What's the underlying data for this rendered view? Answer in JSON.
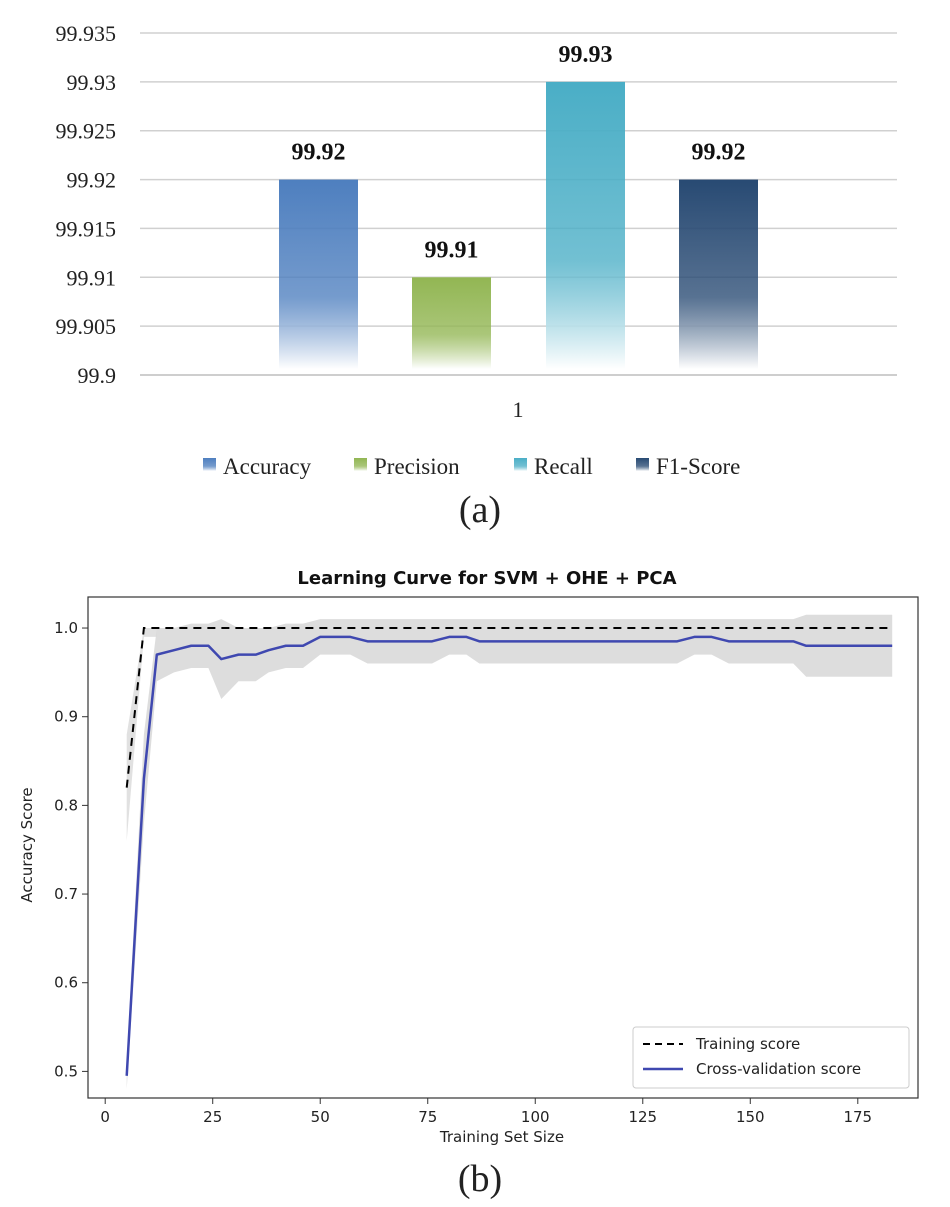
{
  "chart_data": [
    {
      "type": "bar",
      "panel_label": "(a)",
      "title": "",
      "xlabel": "",
      "ylabel": "",
      "categories": [
        "1"
      ],
      "series": [
        {
          "name": "Accuracy",
          "values": [
            99.92
          ],
          "label": "99.92",
          "color_top": "#4e7fbf",
          "color_bottom": "#ffffff"
        },
        {
          "name": "Precision",
          "values": [
            99.91
          ],
          "label": "99.91",
          "color_top": "#92b653",
          "color_bottom": "#ffffff"
        },
        {
          "name": "Recall",
          "values": [
            99.93
          ],
          "label": "99.93",
          "color_top": "#4aaec6",
          "color_bottom": "#ffffff"
        },
        {
          "name": "F1-Score",
          "values": [
            99.92
          ],
          "label": "99.92",
          "color_top": "#284a73",
          "color_bottom": "#ffffff"
        }
      ],
      "ylim": [
        99.9,
        99.935
      ],
      "yticks": [
        "99.935",
        "99.93",
        "99.925",
        "99.92",
        "99.915",
        "99.91",
        "99.905",
        "99.9"
      ],
      "grid": true,
      "legend_position": "bottom"
    },
    {
      "type": "line",
      "panel_label": "(b)",
      "title": "Learning Curve for  SVM + OHE + PCA",
      "xlabel": "Training Set Size",
      "ylabel": "Accuracy Score",
      "xlim": [
        -4,
        189
      ],
      "ylim": [
        0.47,
        1.035
      ],
      "xticks": [
        0,
        25,
        50,
        75,
        100,
        125,
        150,
        175
      ],
      "yticks": [
        0.5,
        0.6,
        0.7,
        0.8,
        0.9,
        1.0
      ],
      "ytick_labels": [
        "0.5",
        "0.6",
        "0.7",
        "0.8",
        "0.9",
        "1.0"
      ],
      "grid": false,
      "legend_position": "bottom-right",
      "x": [
        5,
        9,
        12,
        16,
        20,
        24,
        27,
        31,
        35,
        38,
        42,
        46,
        50,
        54,
        57,
        61,
        65,
        69,
        72,
        76,
        80,
        84,
        87,
        91,
        95,
        99,
        103,
        107,
        110,
        114,
        118,
        122,
        126,
        129,
        133,
        137,
        141,
        145,
        148,
        152,
        156,
        160,
        163,
        167,
        171,
        175,
        183
      ],
      "series": [
        {
          "name": "Training score",
          "style": "dashed",
          "color": "#000000",
          "values": [
            0.82,
            1.0,
            1.0,
            1.0,
            1.0,
            1.0,
            1.0,
            1.0,
            1.0,
            1.0,
            1.0,
            1.0,
            1.0,
            1.0,
            1.0,
            1.0,
            1.0,
            1.0,
            1.0,
            1.0,
            1.0,
            1.0,
            1.0,
            1.0,
            1.0,
            1.0,
            1.0,
            1.0,
            1.0,
            1.0,
            1.0,
            1.0,
            1.0,
            1.0,
            1.0,
            1.0,
            1.0,
            1.0,
            1.0,
            1.0,
            1.0,
            1.0,
            1.0,
            1.0,
            1.0,
            1.0,
            1.0
          ]
        },
        {
          "name": "Cross-validation score",
          "style": "solid",
          "color": "#3f48b0",
          "values": [
            0.495,
            0.83,
            0.97,
            0.975,
            0.98,
            0.98,
            0.965,
            0.97,
            0.97,
            0.975,
            0.98,
            0.98,
            0.99,
            0.99,
            0.99,
            0.985,
            0.985,
            0.985,
            0.985,
            0.985,
            0.99,
            0.99,
            0.985,
            0.985,
            0.985,
            0.985,
            0.985,
            0.985,
            0.985,
            0.985,
            0.985,
            0.985,
            0.985,
            0.985,
            0.985,
            0.99,
            0.99,
            0.985,
            0.985,
            0.985,
            0.985,
            0.985,
            0.98,
            0.98,
            0.98,
            0.98,
            0.98
          ],
          "band_lower": [
            0.48,
            0.78,
            0.94,
            0.95,
            0.955,
            0.955,
            0.92,
            0.94,
            0.94,
            0.95,
            0.955,
            0.955,
            0.97,
            0.97,
            0.97,
            0.96,
            0.96,
            0.96,
            0.96,
            0.96,
            0.97,
            0.97,
            0.96,
            0.96,
            0.96,
            0.96,
            0.96,
            0.96,
            0.96,
            0.96,
            0.96,
            0.96,
            0.96,
            0.96,
            0.96,
            0.97,
            0.97,
            0.96,
            0.96,
            0.96,
            0.96,
            0.96,
            0.945,
            0.945,
            0.945,
            0.945,
            0.945
          ],
          "band_upper": [
            0.51,
            0.88,
            1.0,
            1.0,
            1.005,
            1.005,
            1.01,
            1.0,
            1.0,
            1.0,
            1.005,
            1.005,
            1.01,
            1.01,
            1.01,
            1.01,
            1.01,
            1.01,
            1.01,
            1.01,
            1.01,
            1.01,
            1.01,
            1.01,
            1.01,
            1.01,
            1.01,
            1.01,
            1.01,
            1.01,
            1.01,
            1.01,
            1.01,
            1.01,
            1.01,
            1.01,
            1.01,
            1.01,
            1.01,
            1.01,
            1.01,
            1.01,
            1.015,
            1.015,
            1.015,
            1.015,
            1.015
          ]
        }
      ],
      "training_band_lower": [
        0.76,
        0.99,
        0.99
      ]
    }
  ],
  "colors": {
    "grid": "#d0d0d0",
    "band": "#d9d9d9",
    "text": "#222222"
  }
}
